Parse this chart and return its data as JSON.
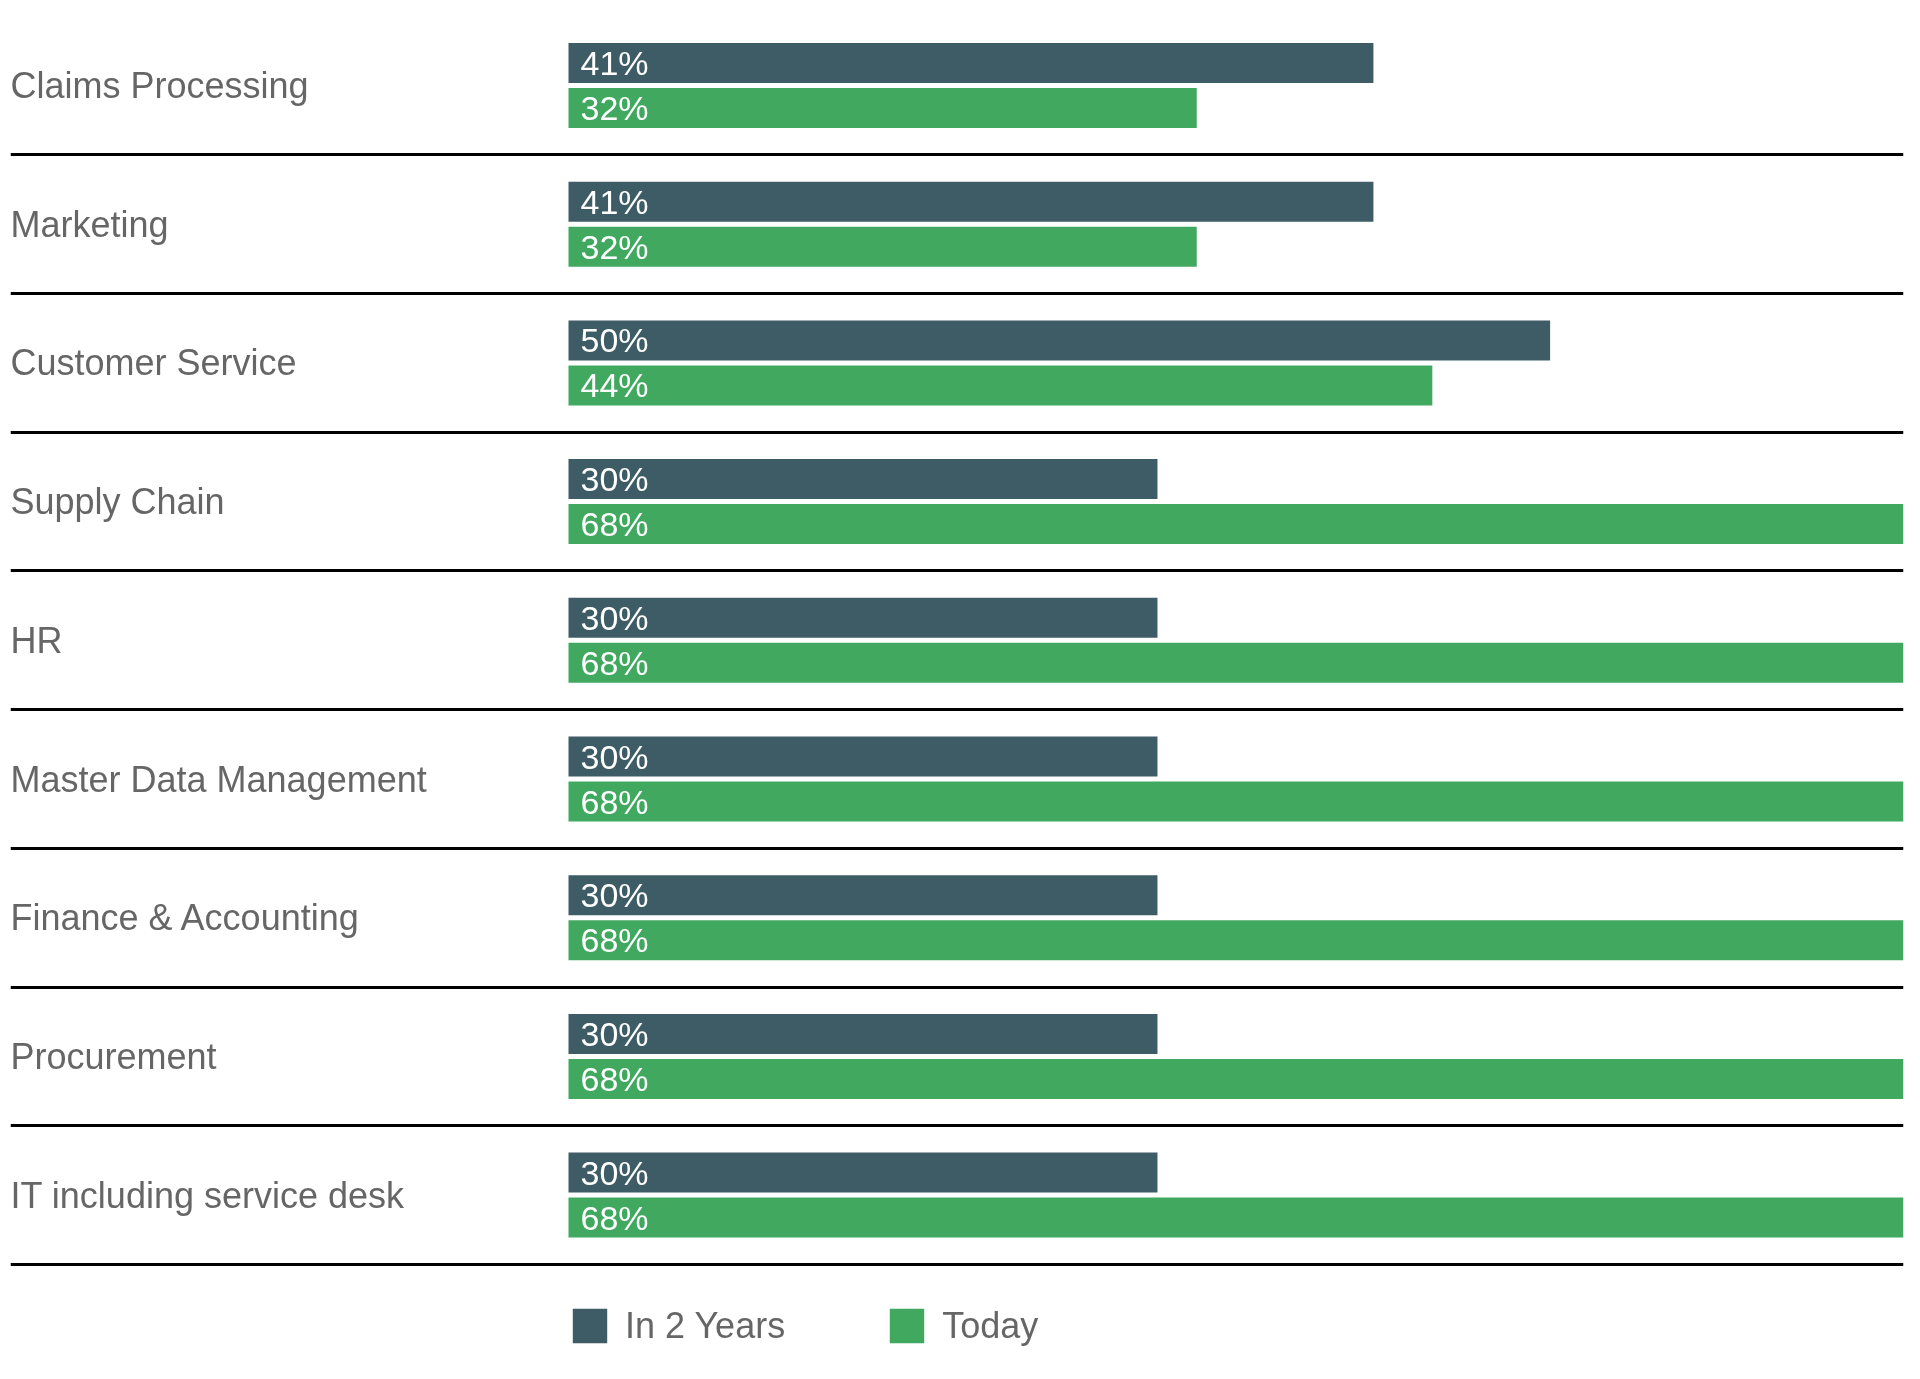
{
  "chart_data": {
    "type": "bar",
    "orientation": "horizontal",
    "tick_labels": "y",
    "categories": [
      "Claims Processing",
      "Marketing",
      "Customer Service",
      "Supply Chain",
      "HR",
      "Master Data Management",
      "Finance & Accounting",
      "Procurement",
      "IT including service desk"
    ],
    "series": [
      {
        "name": "In 2 Years",
        "color": "#3d5c65",
        "values": [
          41,
          41,
          50,
          30,
          30,
          30,
          30,
          30,
          30
        ],
        "value_labels": [
          "41%",
          "41%",
          "50%",
          "30%",
          "30%",
          "30%",
          "30%",
          "30%",
          "30%"
        ]
      },
      {
        "name": "Today",
        "color": "#40a95f",
        "values": [
          32,
          32,
          44,
          68,
          68,
          68,
          68,
          68,
          68
        ],
        "value_labels": [
          "32%",
          "32%",
          "44%",
          "68%",
          "68%",
          "68%",
          "68%",
          "68%",
          "68%"
        ]
      }
    ],
    "grid": "y",
    "legend": "bottom"
  }
}
